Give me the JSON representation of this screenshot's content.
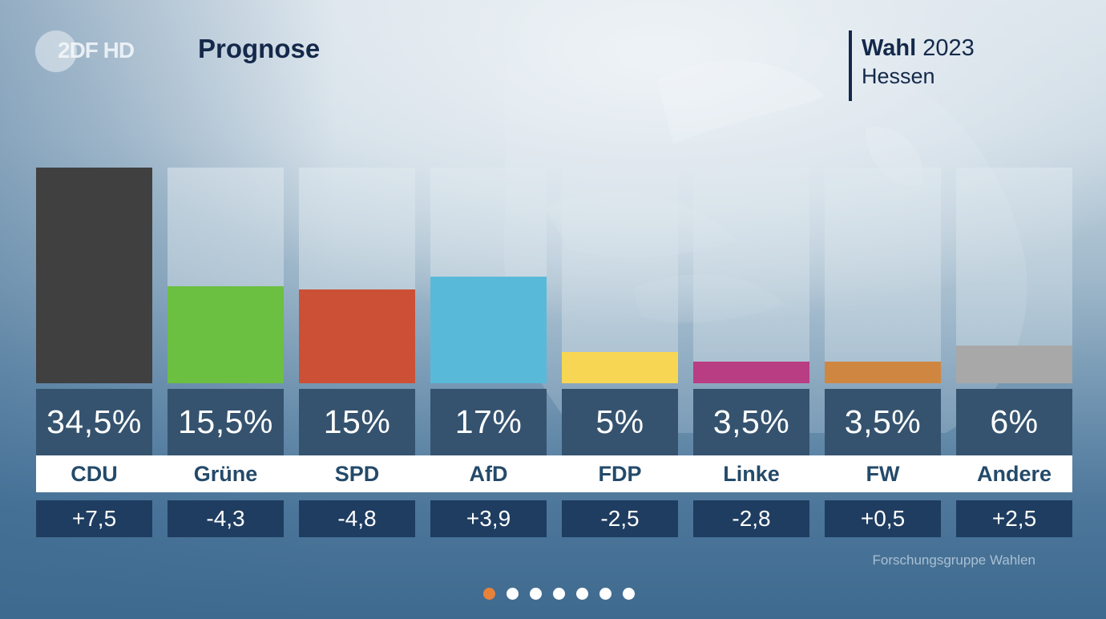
{
  "header": {
    "logo_text": "2DF HD",
    "title": "Prognose",
    "election_label": "Wahl",
    "election_year": "2023",
    "region": "Hessen"
  },
  "chart_data": {
    "type": "bar",
    "title": "Prognose",
    "categories": [
      "CDU",
      "Grüne",
      "SPD",
      "AfD",
      "FDP",
      "Linke",
      "FW",
      "Andere"
    ],
    "values": [
      34.5,
      15.5,
      15,
      17,
      5,
      3.5,
      3.5,
      6
    ],
    "value_labels": [
      "34,5%",
      "15,5%",
      "15%",
      "17%",
      "5%",
      "3,5%",
      "3,5%",
      "6%"
    ],
    "changes": [
      7.5,
      -4.3,
      -4.8,
      3.9,
      -2.5,
      -2.8,
      0.5,
      2.5
    ],
    "change_labels": [
      "+7,5",
      "-4,3",
      "-4,8",
      "+3,9",
      "-2,5",
      "-2,8",
      "+0,5",
      "+2,5"
    ],
    "colors": [
      "#404040",
      "#6bbf41",
      "#cc5035",
      "#59b9d9",
      "#f6d652",
      "#b93d83",
      "#cf8640",
      "#a8a8a8"
    ],
    "ylim": [
      0,
      34.5
    ],
    "unit": "%",
    "xlabel": "",
    "ylabel": "",
    "grid": false,
    "legend": "none"
  },
  "footer": {
    "source": "Forschungsgruppe Wahlen",
    "pager": {
      "total": 7,
      "active_index": 0,
      "active_color": "#e8823a"
    }
  }
}
